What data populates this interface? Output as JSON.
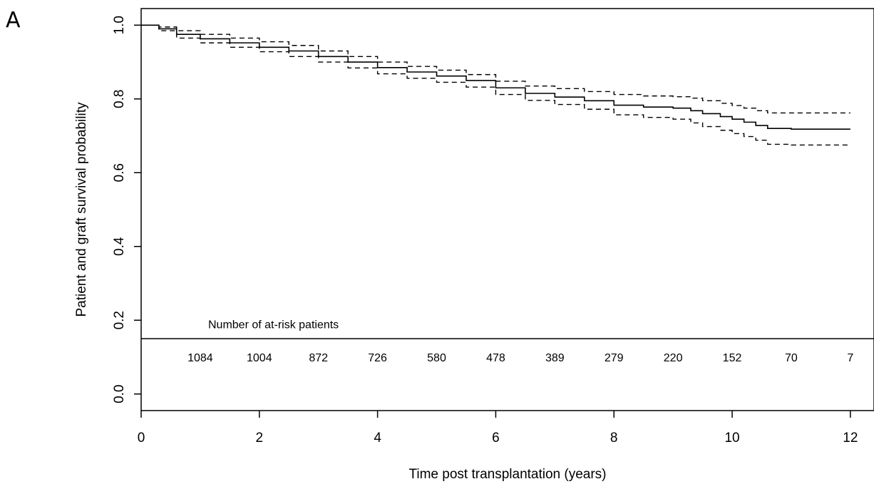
{
  "panel_label": "A",
  "chart_data": {
    "type": "line",
    "xlabel": "Time post transplantation (years)",
    "ylabel": "Patient and graft survival probability",
    "xlim": [
      0,
      12.4
    ],
    "ylim": [
      -0.045,
      1.045
    ],
    "x_ticks": [
      0,
      2,
      4,
      6,
      8,
      10,
      12
    ],
    "y_ticks": [
      0.0,
      0.2,
      0.4,
      0.6,
      0.8,
      1.0
    ],
    "x_tick_labels": [
      "0",
      "2",
      "4",
      "6",
      "8",
      "10",
      "12"
    ],
    "y_tick_labels": [
      "0.0",
      "0.2",
      "0.4",
      "0.6",
      "0.8",
      "1.0"
    ],
    "grid": false,
    "series": [
      {
        "style": "solid",
        "x": [
          0,
          0.3,
          0.6,
          1.0,
          1.5,
          2.0,
          2.5,
          3.0,
          3.5,
          4.0,
          4.5,
          5.0,
          5.5,
          6.0,
          6.5,
          7.0,
          7.5,
          8.0,
          8.5,
          9.0,
          9.3,
          9.5,
          9.8,
          10.0,
          10.2,
          10.4,
          10.6,
          11.0,
          11.5,
          12.0
        ],
        "y": [
          1.0,
          0.99,
          0.975,
          0.963,
          0.952,
          0.94,
          0.93,
          0.915,
          0.9,
          0.885,
          0.873,
          0.862,
          0.85,
          0.83,
          0.815,
          0.805,
          0.795,
          0.783,
          0.778,
          0.775,
          0.768,
          0.76,
          0.752,
          0.745,
          0.737,
          0.728,
          0.72,
          0.718,
          0.718,
          0.718
        ]
      },
      {
        "style": "dashed",
        "x": [
          0,
          0.3,
          0.6,
          1.0,
          1.5,
          2.0,
          2.5,
          3.0,
          3.5,
          4.0,
          4.5,
          5.0,
          5.5,
          6.0,
          6.5,
          7.0,
          7.5,
          8.0,
          8.5,
          9.0,
          9.3,
          9.5,
          9.8,
          10.0,
          10.2,
          10.4,
          10.6,
          11.0,
          11.5,
          12.0
        ],
        "y": [
          1.0,
          0.995,
          0.985,
          0.975,
          0.965,
          0.955,
          0.945,
          0.93,
          0.915,
          0.9,
          0.888,
          0.878,
          0.866,
          0.848,
          0.835,
          0.828,
          0.82,
          0.812,
          0.808,
          0.806,
          0.802,
          0.795,
          0.788,
          0.782,
          0.775,
          0.768,
          0.762,
          0.762,
          0.762,
          0.762
        ]
      },
      {
        "style": "dashed",
        "x": [
          0,
          0.3,
          0.6,
          1.0,
          1.5,
          2.0,
          2.5,
          3.0,
          3.5,
          4.0,
          4.5,
          5.0,
          5.5,
          6.0,
          6.5,
          7.0,
          7.5,
          8.0,
          8.5,
          9.0,
          9.3,
          9.5,
          9.8,
          10.0,
          10.2,
          10.4,
          10.6,
          11.0,
          11.5,
          12.0
        ],
        "y": [
          1.0,
          0.985,
          0.965,
          0.952,
          0.94,
          0.928,
          0.915,
          0.9,
          0.884,
          0.868,
          0.856,
          0.845,
          0.832,
          0.812,
          0.796,
          0.785,
          0.772,
          0.757,
          0.75,
          0.745,
          0.735,
          0.725,
          0.715,
          0.706,
          0.698,
          0.688,
          0.677,
          0.675,
          0.675,
          0.675
        ]
      }
    ],
    "at_risk": {
      "title": "Number of at-risk patients",
      "x": [
        1,
        2,
        3,
        4,
        5,
        6,
        7,
        8,
        9,
        10,
        11,
        12
      ],
      "counts": [
        "1084",
        "1004",
        "872",
        "726",
        "580",
        "478",
        "389",
        "279",
        "220",
        "152",
        "70",
        "7"
      ],
      "y_position": 0.1,
      "title_y": 0.19,
      "separator_y": 0.15
    }
  }
}
